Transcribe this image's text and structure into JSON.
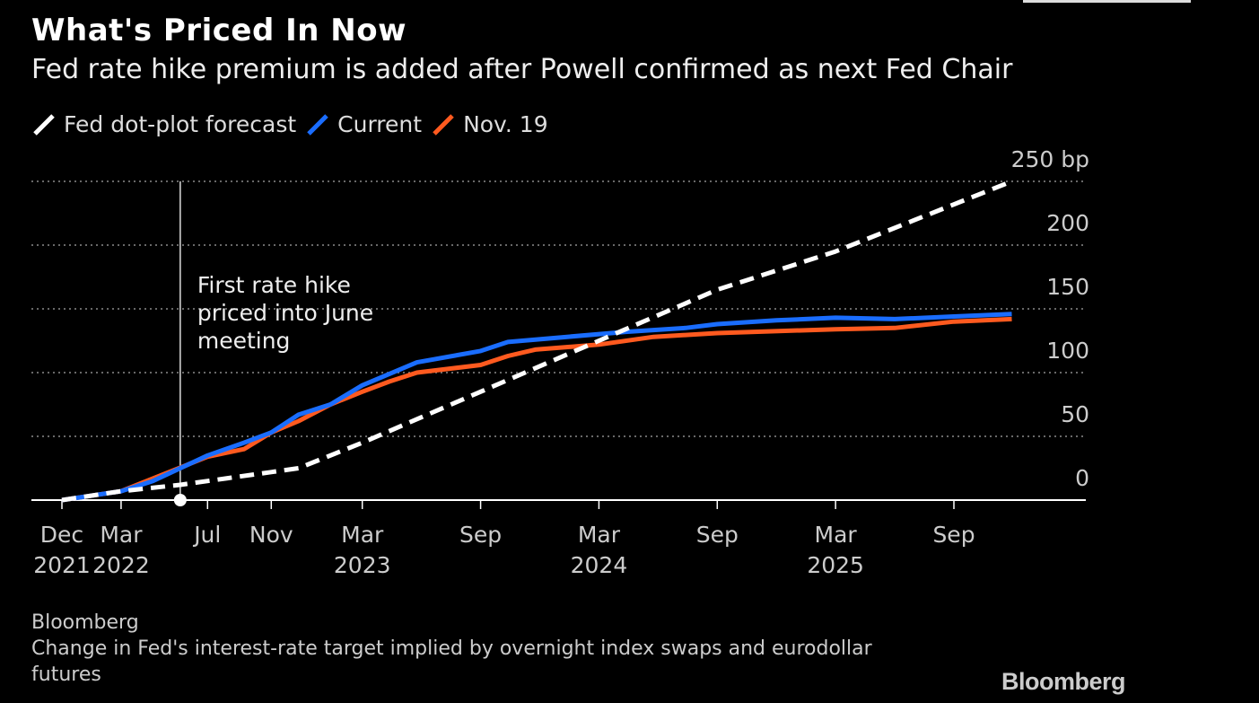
{
  "title": "What's Priced In Now",
  "subtitle": "Fed rate hike premium is added after Powell confirmed as next Fed Chair",
  "source": "Bloomberg",
  "note": "Change in Fed's interest-rate target implied by overnight index swaps and eurodollar futures",
  "logo": "Bloomberg",
  "chart_data": {
    "type": "line",
    "y_unit": "bp",
    "ylim": [
      0,
      250
    ],
    "y_ticks": [
      0,
      50,
      100,
      150,
      200,
      250
    ],
    "y_tick_labels": [
      "0",
      "50",
      "100",
      "150",
      "200",
      "250 bp"
    ],
    "grid": "horizontal dotted",
    "legend_position": "top-left",
    "x_ticks": [
      {
        "date": "2021-12-15",
        "line1": "Dec",
        "line2": "2021"
      },
      {
        "date": "2022-03-16",
        "line1": "Mar",
        "line2": "2022"
      },
      {
        "date": "2022-07-27",
        "line1": "Jul",
        "line2": ""
      },
      {
        "date": "2022-11-02",
        "line1": "Nov",
        "line2": ""
      },
      {
        "date": "2023-03-22",
        "line1": "Mar",
        "line2": "2023"
      },
      {
        "date": "2023-09-20",
        "line1": "Sep",
        "line2": ""
      },
      {
        "date": "2024-03-20",
        "line1": "Mar",
        "line2": "2024"
      },
      {
        "date": "2024-09-18",
        "line1": "Sep",
        "line2": ""
      },
      {
        "date": "2025-03-19",
        "line1": "Mar",
        "line2": "2025"
      },
      {
        "date": "2025-09-17",
        "line1": "Sep",
        "line2": ""
      }
    ],
    "series": [
      {
        "name": "Fed dot-plot forecast",
        "color": "#ffffff",
        "style": "dashed",
        "points": [
          [
            "2021-12-15",
            0
          ],
          [
            "2022-03-16",
            7
          ],
          [
            "2022-06-15",
            12
          ],
          [
            "2022-11-02",
            22
          ],
          [
            "2022-12-14",
            25
          ],
          [
            "2023-03-22",
            45
          ],
          [
            "2023-09-20",
            85
          ],
          [
            "2024-03-20",
            125
          ],
          [
            "2024-09-18",
            165
          ],
          [
            "2025-03-19",
            195
          ],
          [
            "2025-12-15",
            250
          ]
        ]
      },
      {
        "name": "Current",
        "color": "#1a6dff",
        "style": "solid",
        "points": [
          [
            "2021-12-15",
            0
          ],
          [
            "2022-03-16",
            7
          ],
          [
            "2022-05-04",
            15
          ],
          [
            "2022-07-27",
            35
          ],
          [
            "2022-09-21",
            45
          ],
          [
            "2022-11-02",
            53
          ],
          [
            "2022-12-14",
            67
          ],
          [
            "2023-02-01",
            75
          ],
          [
            "2023-03-22",
            90
          ],
          [
            "2023-06-14",
            108
          ],
          [
            "2023-09-20",
            117
          ],
          [
            "2023-11-01",
            124
          ],
          [
            "2024-01-31",
            128
          ],
          [
            "2024-04-30",
            132
          ],
          [
            "2024-07-31",
            135
          ],
          [
            "2024-09-18",
            138
          ],
          [
            "2024-12-18",
            141
          ],
          [
            "2025-03-19",
            143
          ],
          [
            "2025-06-18",
            142
          ],
          [
            "2025-09-17",
            144
          ],
          [
            "2025-12-15",
            146
          ]
        ]
      },
      {
        "name": "Nov. 19",
        "color": "#ff5a1f",
        "style": "solid",
        "points": [
          [
            "2021-12-15",
            0
          ],
          [
            "2022-03-16",
            7
          ],
          [
            "2022-05-04",
            17
          ],
          [
            "2022-07-27",
            34
          ],
          [
            "2022-09-21",
            40
          ],
          [
            "2022-11-02",
            53
          ],
          [
            "2022-12-14",
            62
          ],
          [
            "2023-02-01",
            75
          ],
          [
            "2023-03-22",
            85
          ],
          [
            "2023-05-03",
            93
          ],
          [
            "2023-06-14",
            100
          ],
          [
            "2023-09-20",
            106
          ],
          [
            "2023-11-01",
            113
          ],
          [
            "2023-12-13",
            118
          ],
          [
            "2024-03-20",
            122
          ],
          [
            "2024-06-12",
            128
          ],
          [
            "2024-09-18",
            131
          ],
          [
            "2025-03-19",
            134
          ],
          [
            "2025-06-18",
            135
          ],
          [
            "2025-09-17",
            140
          ],
          [
            "2025-12-15",
            142
          ]
        ]
      }
    ],
    "annotation": {
      "text_lines": [
        "First rate hike",
        "priced into June",
        "meeting"
      ],
      "marker_date": "2022-06-15",
      "marker_value": 0
    }
  }
}
